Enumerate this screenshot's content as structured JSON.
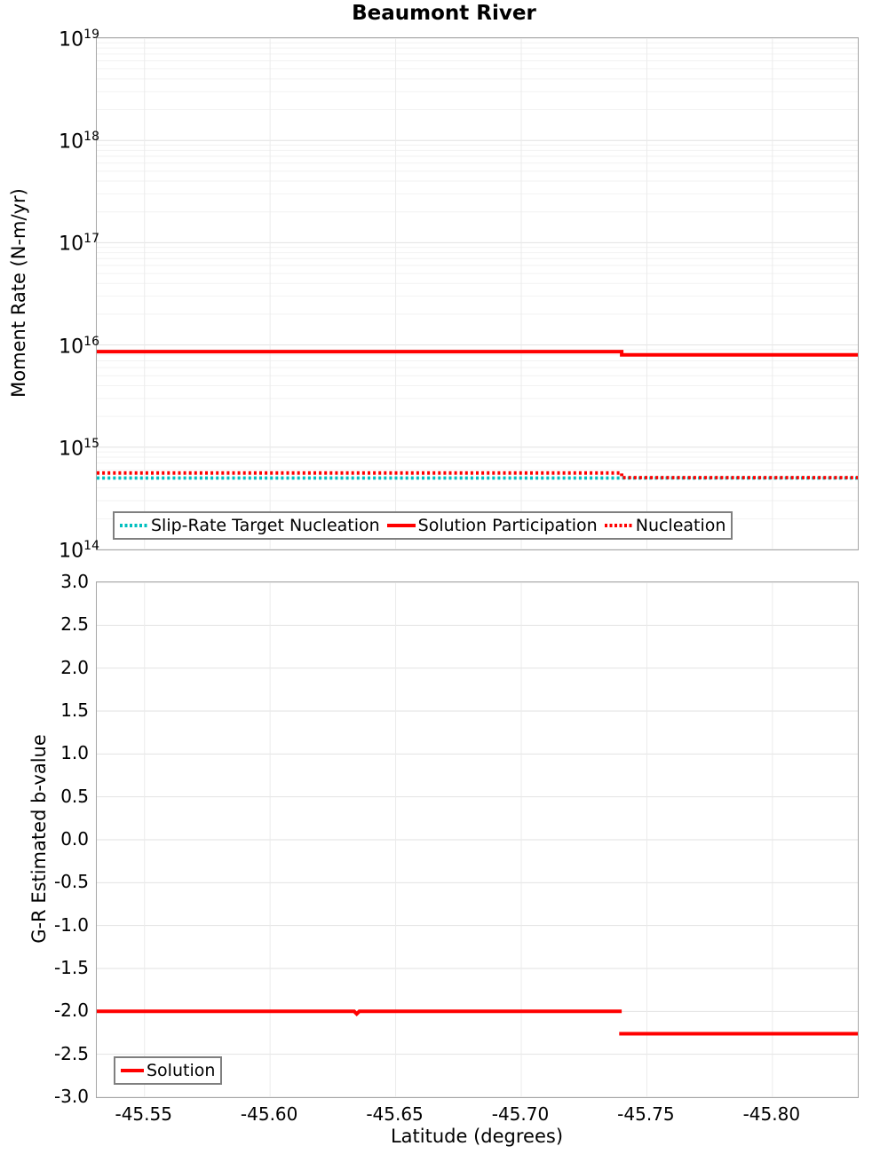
{
  "title": "Beaumont River",
  "colors": {
    "red": "#ff0000",
    "cyan": "#00bfbf",
    "grid_minor": "#f2f2f2",
    "grid_major": "#e2e2e2",
    "grid_vertical": "#ebebeb",
    "spine": "#a6a6a6",
    "legend_border": "#7f7f7f",
    "text": "#000000"
  },
  "chart_data": [
    {
      "type": "line",
      "title": "Beaumont River",
      "xlabel": "",
      "ylabel": "Moment Rate (N-m/yr)",
      "yscale": "log",
      "ylim": [
        100000000000000.0,
        1e+19
      ],
      "yticks": [
        {
          "base": "10",
          "exp": "19"
        },
        {
          "base": "10",
          "exp": "18"
        },
        {
          "base": "10",
          "exp": "17"
        },
        {
          "base": "10",
          "exp": "16"
        },
        {
          "base": "10",
          "exp": "15"
        },
        {
          "base": "10",
          "exp": "14"
        }
      ],
      "xlim": [
        -45.531,
        -45.834
      ],
      "x_inverted": true,
      "xticks": [
        -45.55,
        -45.6,
        -45.65,
        -45.7,
        -45.75,
        -45.8
      ],
      "grid": true,
      "legend_position": "lower-left-inside",
      "series": [
        {
          "name": "Slip-Rate Target Nucleation",
          "color": "#00bfbf",
          "style": "dotted",
          "segments": [
            [
              [
                -45.531,
                500000000000000.0
              ],
              [
                -45.834,
                500000000000000.0
              ]
            ]
          ]
        },
        {
          "name": "Solution Participation",
          "color": "#ff0000",
          "style": "solid",
          "segments": [
            [
              [
                -45.531,
                8600000000000000.0
              ],
              [
                -45.74,
                8600000000000000.0
              ],
              [
                -45.74,
                8000000000000000.0
              ],
              [
                -45.834,
                8000000000000000.0
              ]
            ]
          ]
        },
        {
          "name": "Nucleation",
          "color": "#ff0000",
          "style": "dotted",
          "segments": [
            [
              [
                -45.531,
                560000000000000.0
              ],
              [
                -45.74,
                560000000000000.0
              ],
              [
                -45.74,
                505000000000000.0
              ],
              [
                -45.834,
                505000000000000.0
              ]
            ]
          ]
        }
      ]
    },
    {
      "type": "line",
      "title": "",
      "xlabel": "Latitude (degrees)",
      "ylabel": "G-R Estimated b-value",
      "yscale": "linear",
      "ylim": [
        -3.0,
        3.0
      ],
      "yticks": [
        {
          "value": 3.0,
          "label": "3.0"
        },
        {
          "value": 2.5,
          "label": "2.5"
        },
        {
          "value": 2.0,
          "label": "2.0"
        },
        {
          "value": 1.5,
          "label": "1.5"
        },
        {
          "value": 1.0,
          "label": "1.0"
        },
        {
          "value": 0.5,
          "label": "0.5"
        },
        {
          "value": 0.0,
          "label": "0.0"
        },
        {
          "value": -0.5,
          "label": "-0.5"
        },
        {
          "value": -1.0,
          "label": "-1.0"
        },
        {
          "value": -1.5,
          "label": "-1.5"
        },
        {
          "value": -2.0,
          "label": "-2.0"
        },
        {
          "value": -2.5,
          "label": "-2.5"
        },
        {
          "value": -3.0,
          "label": "-3.0"
        }
      ],
      "xlim": [
        -45.531,
        -45.834
      ],
      "x_inverted": true,
      "xticks": [
        {
          "value": -45.55,
          "label": "-45.55"
        },
        {
          "value": -45.6,
          "label": "-45.60"
        },
        {
          "value": -45.65,
          "label": "-45.65"
        },
        {
          "value": -45.7,
          "label": "-45.70"
        },
        {
          "value": -45.75,
          "label": "-45.75"
        },
        {
          "value": -45.8,
          "label": "-45.80"
        }
      ],
      "grid": true,
      "legend_position": "lower-left-inside",
      "series": [
        {
          "name": "Solution",
          "color": "#ff0000",
          "style": "solid",
          "segments": [
            [
              [
                -45.531,
                -2.0
              ],
              [
                -45.6335,
                -2.0
              ],
              [
                -45.6345,
                -2.03
              ],
              [
                -45.6355,
                -2.0
              ],
              [
                -45.74,
                -2.0
              ]
            ],
            [
              [
                -45.739,
                -2.26
              ],
              [
                -45.834,
                -2.26
              ]
            ]
          ]
        }
      ]
    }
  ]
}
